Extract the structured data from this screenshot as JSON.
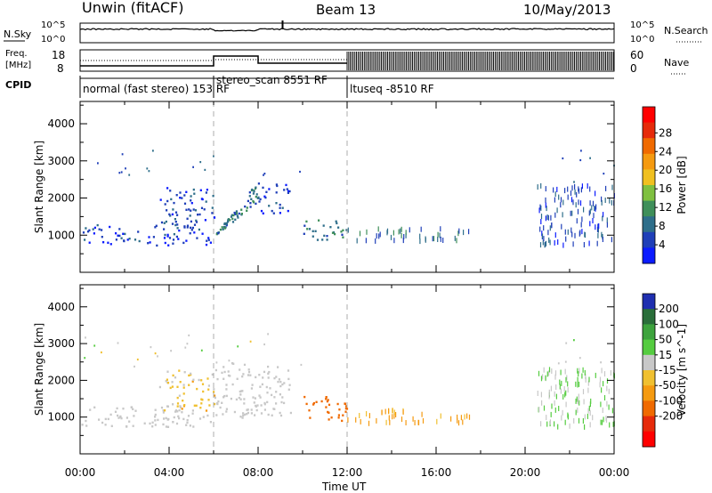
{
  "header": {
    "station": "Unwin (fitACF)",
    "beam": "Beam 13",
    "date": "10/May/2013"
  },
  "summary": {
    "nsky_label": "N.Sky",
    "nsearch_label": "N.Search",
    "nsearch_ticks": [
      "10^5",
      "10^0"
    ],
    "freq_label": "Freq.",
    "freq_unit": "[MHz]",
    "freq_ticks": [
      "18",
      "8"
    ],
    "nave_label": "Nave",
    "nave_ticks": [
      "60",
      "0"
    ],
    "cpid_label": "CPID",
    "cpid_segments": [
      {
        "name": "normal (fast stereo) 153 RF",
        "start": "00:00",
        "end": "06:00"
      },
      {
        "name": "stereo_scan 8551 RF",
        "start": "06:00",
        "end": "12:00"
      },
      {
        "name": "ltuseq -8510 RF",
        "start": "12:00",
        "end": "24:00"
      }
    ]
  },
  "chart_data": [
    {
      "type": "heatmap",
      "title": "",
      "xlabel": "Time UT",
      "ylabel": "Slant Range [km]",
      "x_ticks": [
        "00:00",
        "04:00",
        "08:00",
        "12:00",
        "16:00",
        "20:00",
        "00:00"
      ],
      "y_ticks": [
        1000,
        2000,
        3000,
        4000
      ],
      "xlim": [
        0,
        24
      ],
      "ylim": [
        0,
        4600
      ],
      "colorbar": {
        "label": "Power [dB]",
        "ticks": [
          "4",
          "8",
          "12",
          "16",
          "20",
          "24",
          "28"
        ],
        "colors": [
          "#0b1bff",
          "#1f3fb8",
          "#2e6e8a",
          "#3f8f5a",
          "#7fc040",
          "#f0c020",
          "#f59a10",
          "#f06a00",
          "#e62a0a",
          "#ff0000"
        ]
      },
      "regions": [
        {
          "t0": 0.0,
          "t1": 6.0,
          "r0": 750,
          "r1": 1300,
          "dB": 6
        },
        {
          "t0": 3.5,
          "t1": 6.0,
          "r0": 1200,
          "r1": 2300,
          "dB": 7
        },
        {
          "t0": 6.0,
          "t1": 8.0,
          "r0": 1000,
          "r1": 2500,
          "dB": 10
        },
        {
          "t0": 8.0,
          "t1": 9.5,
          "r0": 1600,
          "r1": 2400,
          "dB": 6
        },
        {
          "t0": 10.0,
          "t1": 12.0,
          "r0": 900,
          "r1": 1500,
          "dB": 10
        },
        {
          "t0": 12.0,
          "t1": 17.5,
          "r0": 900,
          "r1": 1250,
          "dB": 9
        },
        {
          "t0": 20.5,
          "t1": 24.0,
          "r0": 800,
          "r1": 2400,
          "dB": 7
        }
      ]
    },
    {
      "type": "heatmap",
      "title": "",
      "xlabel": "Time UT",
      "ylabel": "Slant Range [km]",
      "x_ticks": [
        "00:00",
        "04:00",
        "08:00",
        "12:00",
        "16:00",
        "20:00",
        "00:00"
      ],
      "y_ticks": [
        1000,
        2000,
        3000,
        4000
      ],
      "xlim": [
        0,
        24
      ],
      "ylim": [
        0,
        4600
      ],
      "colorbar": {
        "label": "Velocity [m s^-1]",
        "ticks": [
          "200",
          "100",
          "50",
          "15",
          "-15",
          "-50",
          "-100",
          "-200"
        ],
        "colors": [
          "#1f2fb0",
          "#2a6e3a",
          "#3da33d",
          "#55cc40",
          "#c8c8c8",
          "#f0c030",
          "#f59a10",
          "#f06a00",
          "#e62a0a",
          "#ff0000"
        ]
      },
      "regions": [
        {
          "t0": 0.0,
          "t1": 6.0,
          "r0": 750,
          "r1": 1300,
          "v": 0
        },
        {
          "t0": 3.5,
          "t1": 6.0,
          "r0": 1200,
          "r1": 2300,
          "v": -20
        },
        {
          "t0": 6.0,
          "t1": 9.5,
          "r0": 1000,
          "r1": 2500,
          "v": 0
        },
        {
          "t0": 10.0,
          "t1": 12.0,
          "r0": 900,
          "r1": 1600,
          "v": -110
        },
        {
          "t0": 12.0,
          "t1": 17.5,
          "r0": 900,
          "r1": 1250,
          "v": -40
        },
        {
          "t0": 20.5,
          "t1": 24.0,
          "r0": 800,
          "r1": 2400,
          "v": 15
        }
      ]
    }
  ]
}
